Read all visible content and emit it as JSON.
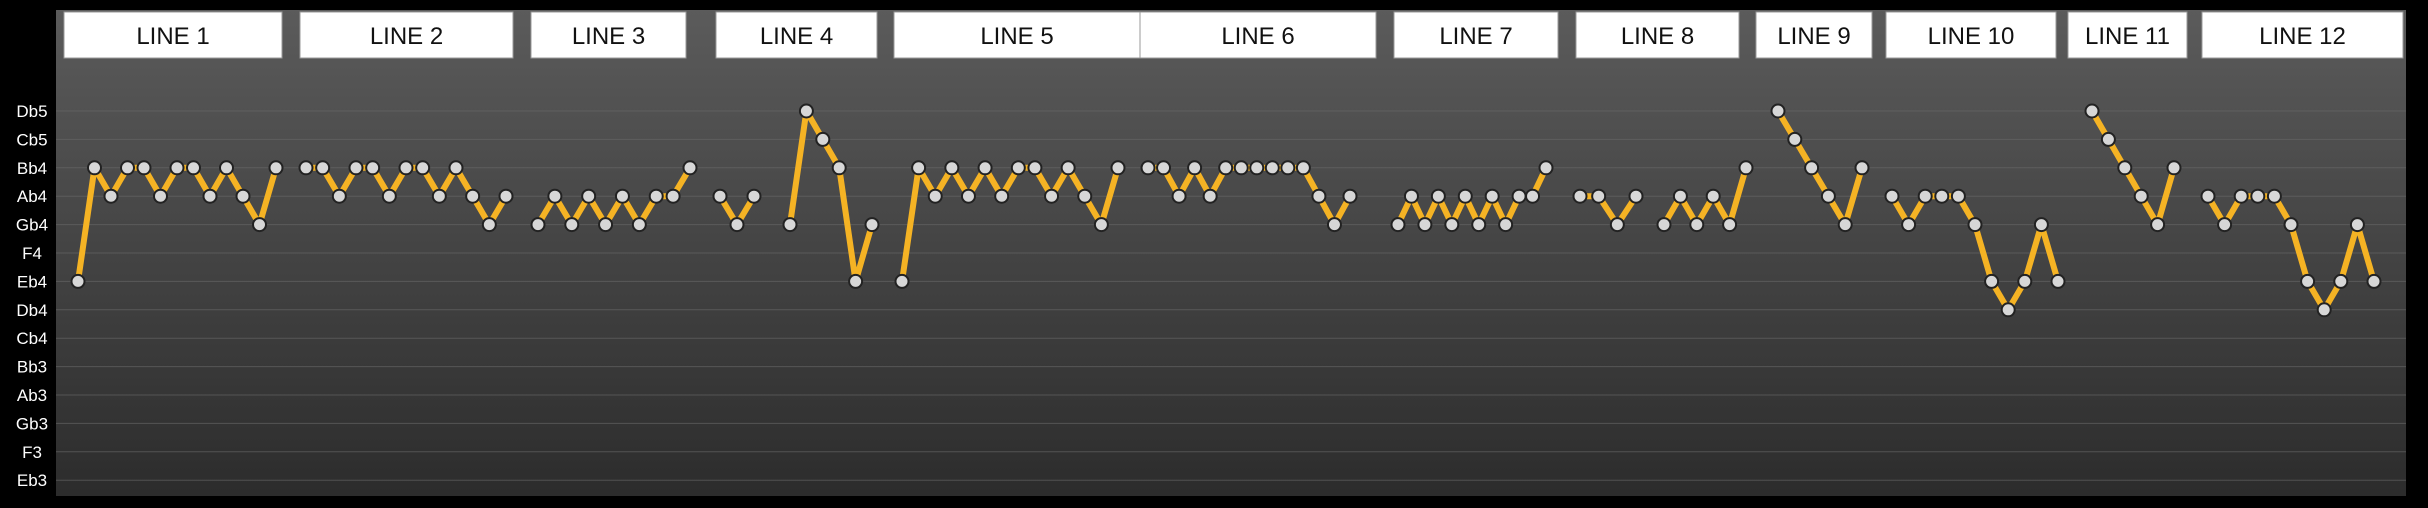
{
  "chart_data": {
    "type": "line",
    "y_categories": [
      "Eb3",
      "F3",
      "Gb3",
      "Ab3",
      "Bb3",
      "Cb4",
      "Db4",
      "Eb4",
      "F4",
      "Gb4",
      "Ab4",
      "Bb4",
      "Cb5",
      "Db5"
    ],
    "grid": true,
    "colors": {
      "line": "#f5b324",
      "marker_fill": "#d7d7d7",
      "marker_stroke": "#222222",
      "title_box": "#ffffff"
    },
    "series": [
      {
        "title": "LINE 1",
        "values": [
          "Eb4",
          "Bb4",
          "Ab4",
          "Bb4",
          "Bb4",
          "Ab4",
          "Bb4",
          "Bb4",
          "Ab4",
          "Bb4",
          "Ab4",
          "Gb4",
          "Bb4"
        ]
      },
      {
        "title": "LINE 2",
        "values": [
          "Bb4",
          "Bb4",
          "Ab4",
          "Bb4",
          "Bb4",
          "Ab4",
          "Bb4",
          "Bb4",
          "Ab4",
          "Bb4",
          "Ab4",
          "Gb4",
          "Ab4"
        ]
      },
      {
        "title": "LINE 3",
        "values": [
          "Gb4",
          "Ab4",
          "Gb4",
          "Ab4",
          "Gb4",
          "Ab4",
          "Gb4",
          "Ab4",
          "Ab4",
          "Bb4"
        ]
      },
      {
        "title": "LINE 4",
        "values": [
          [
            "Ab4",
            "Gb4",
            "Ab4"
          ],
          [
            "Gb4",
            "Db5",
            "Cb5",
            "Bb4",
            "Eb4",
            "Gb4"
          ]
        ]
      },
      {
        "title": "LINE 5",
        "values": [
          "Eb4",
          "Bb4",
          "Ab4",
          "Bb4",
          "Ab4",
          "Bb4",
          "Ab4",
          "Bb4",
          "Bb4",
          "Ab4",
          "Bb4",
          "Ab4",
          "Gb4",
          "Bb4"
        ]
      },
      {
        "title": "LINE 6",
        "values": [
          "Bb4",
          "Bb4",
          "Ab4",
          "Bb4",
          "Ab4",
          "Bb4",
          "Bb4",
          "Bb4",
          "Bb4",
          "Bb4",
          "Bb4",
          "Ab4",
          "Gb4",
          "Ab4"
        ]
      },
      {
        "title": "LINE 7",
        "values": [
          "Gb4",
          "Ab4",
          "Gb4",
          "Ab4",
          "Gb4",
          "Ab4",
          "Gb4",
          "Ab4",
          "Gb4",
          "Ab4",
          "Ab4",
          "Bb4"
        ]
      },
      {
        "title": "LINE 8",
        "values": [
          [
            "Ab4",
            "Ab4",
            "Gb4",
            "Ab4"
          ],
          [
            "Gb4",
            "Ab4",
            "Gb4",
            "Ab4",
            "Gb4",
            "Bb4"
          ]
        ]
      },
      {
        "title": "LINE 9",
        "values": [
          "Db5",
          "Cb5",
          "Bb4",
          "Ab4",
          "Gb4",
          "Bb4"
        ]
      },
      {
        "title": "LINE 10",
        "values": [
          "Ab4",
          "Gb4",
          "Ab4",
          "Ab4",
          "Ab4",
          "Gb4",
          "Eb4",
          "Db4",
          "Eb4",
          "Gb4",
          "Eb4"
        ]
      },
      {
        "title": "LINE 11",
        "values": [
          "Db5",
          "Cb5",
          "Bb4",
          "Ab4",
          "Gb4",
          "Bb4"
        ]
      },
      {
        "title": "LINE 12",
        "values": [
          "Ab4",
          "Gb4",
          "Ab4",
          "Ab4",
          "Ab4",
          "Gb4",
          "Eb4",
          "Db4",
          "Eb4",
          "Gb4",
          "Eb4"
        ]
      }
    ]
  }
}
